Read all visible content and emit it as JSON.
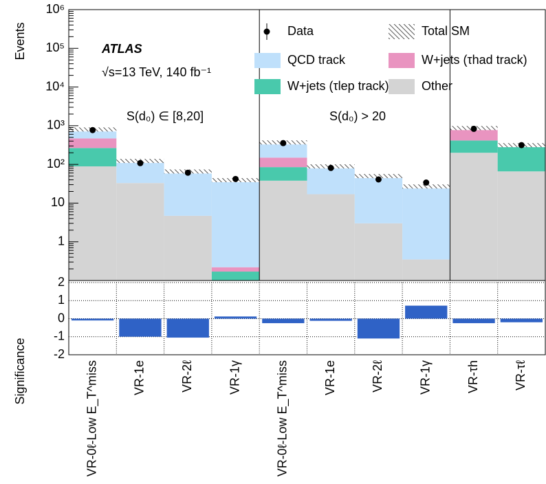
{
  "chart_data": [
    {
      "type": "stacked-bar",
      "y_label": "Events",
      "log_scale": true,
      "ylim": [
        0.1,
        1000000
      ],
      "yticks": [
        1,
        10,
        {
          "value": 100,
          "label": "10²"
        },
        {
          "value": 1000,
          "label": "10³"
        },
        {
          "value": 10000,
          "label": "10⁴"
        },
        {
          "value": 100000,
          "label": "10⁵"
        },
        {
          "value": 1000000,
          "label": "10⁶"
        }
      ],
      "experiment": "ATLAS",
      "energy_label": "√s=13 TeV, 140 fb⁻¹",
      "region_labels": [
        "S(d₀) ∈ [8,20]",
        "S(d₀) > 20"
      ],
      "total_label": "Total SM",
      "data": {
        "name": "Data",
        "color": "#000000",
        "values": [
          770,
          108,
          61,
          42,
          355,
          81,
          41,
          34,
          830,
          315
        ]
      },
      "series": [
        {
          "name": "Other",
          "color": "#d4d4d4",
          "values": [
            89,
            33,
            4.7,
            0.1,
            38,
            17,
            3,
            0.35,
            200,
            66
          ]
        },
        {
          "name": "W+jets (τlep track)",
          "color": "#49c9ac",
          "values": [
            176,
            0,
            0,
            0.07,
            47,
            0,
            0,
            0,
            215,
            249
          ]
        },
        {
          "name": "W+jets (τhad track)",
          "color": "#e994c0",
          "values": [
            205,
            0,
            0,
            0.05,
            65,
            0,
            0,
            0,
            455,
            0
          ]
        },
        {
          "name": "QCD track",
          "color": "#bfe0fb",
          "values": [
            330,
            90,
            61,
            39,
            220,
            72,
            47,
            26.6,
            0,
            0
          ]
        }
      ]
    },
    {
      "type": "bar",
      "y_label": "Significance",
      "color": "#2f62c6",
      "grid": true,
      "categories": [
        "VR-0ℓ-Low E_T^miss",
        "VR-1e",
        "VR-2ℓ",
        "VR-1γ",
        "VR-0ℓ-Low E_T^miss",
        "VR-1e",
        "VR-2ℓ",
        "VR-1γ",
        "VR-τh",
        "VR-τℓ"
      ],
      "values": [
        -0.1,
        -1.0,
        -1.05,
        0.12,
        -0.25,
        -0.12,
        -1.1,
        0.72,
        -0.25,
        -0.2
      ],
      "ylim": [
        -2,
        2
      ],
      "yticks": [
        -2,
        -1,
        0,
        1,
        2
      ]
    }
  ]
}
